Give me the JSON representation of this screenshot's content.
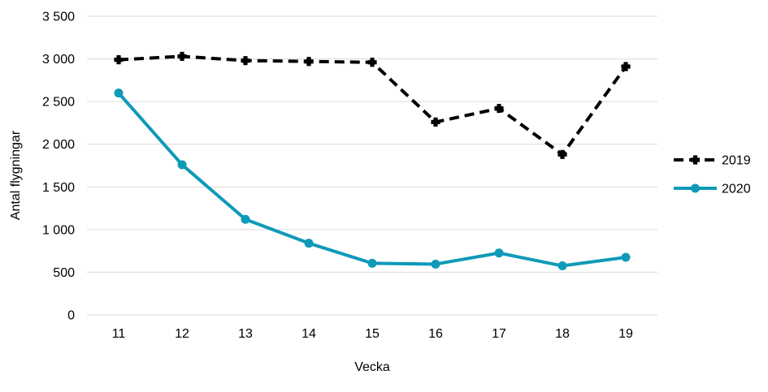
{
  "chart_data": {
    "type": "line",
    "categories": [
      "11",
      "12",
      "13",
      "14",
      "15",
      "16",
      "17",
      "18",
      "19"
    ],
    "xlabel": "Vecka",
    "ylabel": "Antal flygningar",
    "ylim": [
      0,
      3500
    ],
    "yticks": [
      0,
      500,
      1000,
      1500,
      2000,
      2500,
      3000,
      3500
    ],
    "ytick_labels": [
      "0",
      "500",
      "1 000",
      "1 500",
      "2 000",
      "2 500",
      "3 000",
      "3 500"
    ],
    "grid": "horizontal",
    "legend_position": "right",
    "series": [
      {
        "name": "2019",
        "color": "#000000",
        "style": "dashed",
        "marker": "cross",
        "values": [
          2990,
          3030,
          2980,
          2970,
          2960,
          2260,
          2420,
          1880,
          2910
        ]
      },
      {
        "name": "2020",
        "color": "#0f9ab8",
        "style": "solid",
        "marker": "circle",
        "values": [
          2600,
          1760,
          1120,
          840,
          605,
          595,
          725,
          575,
          675
        ]
      }
    ]
  }
}
